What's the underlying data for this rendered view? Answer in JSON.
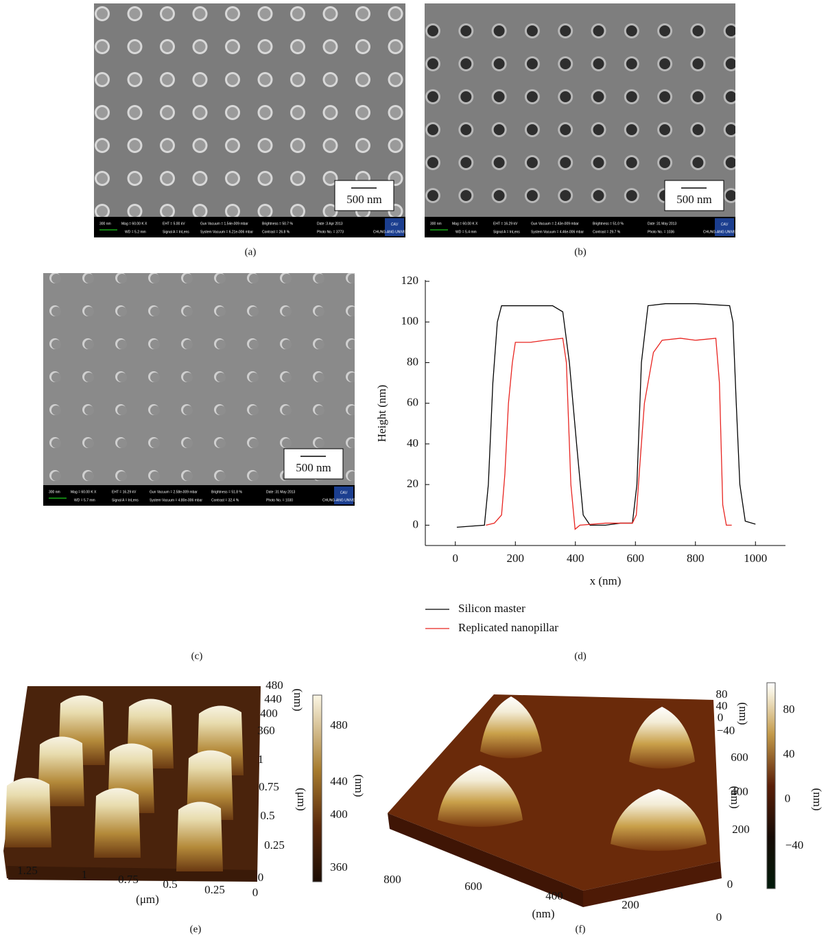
{
  "panel_labels": [
    "(a)",
    "(b)",
    "(c)",
    "(d)",
    "(e)",
    "(f)"
  ],
  "sem_images": [
    {
      "scale_bar": "500 nm",
      "info": [
        "300 nm",
        "Mag = 60.00 K X",
        "WD = 5.2 mm",
        "EHT = 5.00 kV",
        "Signal A = InLens",
        "Gun Vacuum = 1.54e-009 mbar",
        "System Vacuum = 6.21e-006 mbar",
        "Brightness = 50.7 %",
        "Contrast = 26.8 %",
        "Date :3 Apr 2013",
        "Photo No. = 3773"
      ],
      "logo": [
        "CAU",
        "CHUNG-ANG UNIVERSITY"
      ]
    },
    {
      "scale_bar": "500 nm",
      "info": [
        "300 nm",
        "Mag = 60.00 K X",
        "WD = 5.4 mm",
        "EHT = 16.29 kV",
        "Signal A = InLens",
        "Gun Vacuum = 2.43e-009 mbar",
        "System Vacuum = 4.46e-006 mbar",
        "Brightness = 51.0 %",
        "Contrast = 29.7 %",
        "Date :31 May 2013",
        "Photo No. = 1036"
      ],
      "logo": [
        "CAU",
        "CHUNG-ANG UNIVERSITY"
      ]
    },
    {
      "scale_bar": "500 nm",
      "info": [
        "300 nm",
        "Mag = 60.00 K X",
        "WD = 5.7 mm",
        "EHT = 16.29 kV",
        "Signal A = InLens",
        "Gun Vacuum = 2.58e-009 mbar",
        "System Vacuum = 4.80e-006 mbar",
        "Brightness = 51.8 %",
        "Contrast = 32.4 %",
        "Date :31 May 2013",
        "Photo No. = 1030"
      ],
      "logo": [
        "CAU",
        "CHUNG-ANG UNIVERSITY"
      ]
    }
  ],
  "chart_data": {
    "type": "line",
    "x_label": "x (nm)",
    "y_label": "Height (nm)",
    "xlim": [
      -100,
      1100
    ],
    "xticks": [
      0,
      200,
      400,
      600,
      800,
      1000
    ],
    "ylim": [
      -10,
      120
    ],
    "yticks": [
      0,
      20,
      40,
      60,
      80,
      100,
      120
    ],
    "series": [
      {
        "name": "Silicon master",
        "color": "#000000",
        "x": [
          5,
          50,
          97,
          110,
          125,
          140,
          154,
          200,
          250,
          324,
          358,
          380,
          404,
          426,
          449,
          500,
          550,
          590,
          605,
          620,
          642,
          700,
          800,
          914,
          925,
          936,
          948,
          966,
          1000
        ],
        "values": [
          -1,
          -0.5,
          0,
          20,
          70,
          100,
          108,
          108,
          108,
          108,
          105,
          80,
          40,
          5,
          0,
          0,
          1,
          1,
          20,
          80,
          108,
          109,
          109,
          108,
          100,
          60,
          20,
          2,
          0.5
        ]
      },
      {
        "name": "Replicated nanopillar",
        "color": "#e8231f",
        "x": [
          102,
          130,
          154,
          165,
          177,
          190,
          200,
          250,
          300,
          358,
          370,
          385,
          399,
          415,
          500,
          590,
          603,
          615,
          630,
          660,
          689,
          750,
          800,
          868,
          880,
          891,
          903,
          921
        ],
        "values": [
          0,
          1,
          5,
          25,
          60,
          80,
          90,
          90,
          91,
          92,
          80,
          20,
          -2,
          0,
          1,
          1,
          5,
          30,
          60,
          85,
          91,
          92,
          91,
          92,
          70,
          10,
          0,
          0
        ]
      }
    ]
  },
  "afm_e": {
    "z_ticks": [
      "480",
      "440",
      "400",
      "360"
    ],
    "z_label": "(nm)",
    "y_ticks": [
      "1",
      "0.75",
      "0.5",
      "0.25",
      "0"
    ],
    "y_label": "(μm)",
    "x_ticks": [
      "1.25",
      "1",
      "0.75",
      "0.5",
      "0.25",
      "0"
    ],
    "x_label": "(μm)",
    "colorbar_ticks": [
      "480",
      "440",
      "400",
      "360"
    ],
    "colorbar_label": "(nm)"
  },
  "afm_f": {
    "z_ticks": [
      "80",
      "40",
      "0",
      "−40"
    ],
    "z_label": "(nm)",
    "y_ticks": [
      "600",
      "400",
      "200",
      "0"
    ],
    "y_label": "(nm)",
    "x_ticks": [
      "800",
      "600",
      "400",
      "200",
      "0"
    ],
    "x_label": "(nm)",
    "colorbar_ticks": [
      "80",
      "40",
      "0",
      "−40"
    ],
    "colorbar_label": "(nm)"
  }
}
